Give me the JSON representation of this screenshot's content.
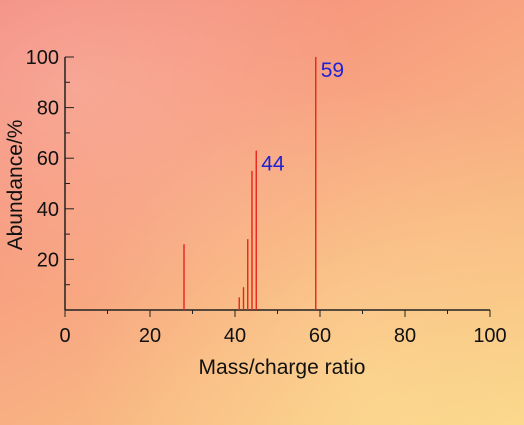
{
  "chart_data": {
    "type": "bar",
    "xlabel": "Mass/charge ratio",
    "ylabel": "Abundance/%",
    "xlim": [
      0,
      100
    ],
    "ylim": [
      0,
      100
    ],
    "x_ticks": [
      "0",
      "20",
      "40",
      "60",
      "80",
      "100"
    ],
    "y_ticks": [
      "20",
      "40",
      "60",
      "80",
      "100"
    ],
    "peaks": [
      {
        "mz": 28,
        "abundance": 26
      },
      {
        "mz": 41,
        "abundance": 5
      },
      {
        "mz": 42,
        "abundance": 9
      },
      {
        "mz": 43,
        "abundance": 28
      },
      {
        "mz": 44,
        "abundance": 55
      },
      {
        "mz": 45,
        "abundance": 63
      },
      {
        "mz": 59,
        "abundance": 100
      }
    ],
    "annotations": [
      {
        "text": "44",
        "mz": 45
      },
      {
        "text": "59",
        "mz": 59
      }
    ],
    "colors": {
      "bar": "#e8231a",
      "annotation": "#1f22d6",
      "axis": "#222222"
    }
  }
}
